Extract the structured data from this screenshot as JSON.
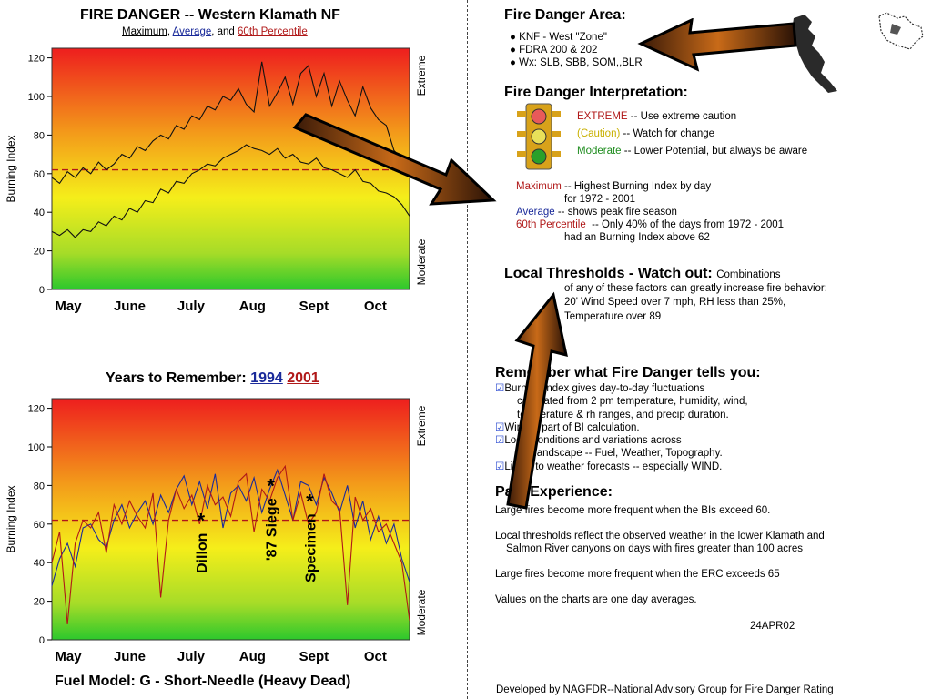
{
  "colors": {
    "red": "#b01818",
    "blue": "#1a2a9a",
    "caution": "#c8b000",
    "moderate": "#1a8a1a"
  },
  "top_chart": {
    "title": "FIRE DANGER -- Western Klamath NF",
    "subtitle": {
      "a": "Maximum",
      "b": ", ",
      "c": "Average",
      ",d": "",
      "e": ", and ",
      "f": "60th Percentile"
    },
    "ylabel": "Burning Index",
    "right_top": "Extreme",
    "right_bottom": "Moderate"
  },
  "bottom_chart": {
    "title_prefix": "Years to Remember:",
    "year_a": "1994",
    "year_b": "2001",
    "ylabel": "Burning Index",
    "right_top": "Extreme",
    "right_bottom": "Moderate",
    "fuel_model": "Fuel Model: G - Short-Needle (Heavy Dead)"
  },
  "chart_data": [
    {
      "type": "line",
      "title": "FIRE DANGER -- Western Klamath NF",
      "ylabel": "Burning Index",
      "ylim": [
        0,
        125
      ],
      "yticks": [
        "0",
        "20",
        "40",
        "60",
        "80",
        "100",
        "120"
      ],
      "xticks": [
        "May",
        "June",
        "July",
        "Aug",
        "Sept",
        "Oct"
      ],
      "reference_line": 62,
      "series": [
        {
          "name": "Maximum",
          "color": "#111",
          "values": [
            58,
            55,
            61,
            58,
            63,
            60,
            66,
            62,
            65,
            70,
            68,
            74,
            72,
            77,
            80,
            78,
            85,
            83,
            90,
            88,
            95,
            93,
            100,
            98,
            104,
            96,
            92,
            118,
            95,
            102,
            110,
            96,
            112,
            116,
            100,
            112,
            95,
            108,
            98,
            90,
            105,
            94,
            88,
            85,
            72,
            68,
            60
          ]
        },
        {
          "name": "Average",
          "color": "#111",
          "values": [
            30,
            28,
            31,
            27,
            31,
            30,
            35,
            33,
            38,
            36,
            42,
            40,
            46,
            45,
            52,
            50,
            56,
            55,
            60,
            62,
            65,
            64,
            68,
            70,
            72,
            75,
            73,
            72,
            70,
            73,
            68,
            70,
            66,
            65,
            68,
            63,
            62,
            60,
            58,
            62,
            56,
            55,
            51,
            50,
            48,
            44,
            38
          ]
        }
      ]
    },
    {
      "type": "line",
      "title": "Years to Remember: 1994 2001",
      "ylabel": "Burning Index",
      "ylim": [
        0,
        125
      ],
      "yticks": [
        "0",
        "20",
        "40",
        "60",
        "80",
        "100",
        "120"
      ],
      "xticks": [
        "May",
        "June",
        "July",
        "Aug",
        "Sept",
        "Oct"
      ],
      "reference_line": 62,
      "series": [
        {
          "name": "1994",
          "color": "#1a2a9a",
          "values": [
            28,
            42,
            50,
            38,
            58,
            60,
            52,
            48,
            62,
            70,
            58,
            66,
            72,
            60,
            75,
            66,
            78,
            85,
            70,
            82,
            68,
            86,
            58,
            76,
            80,
            72,
            84,
            66,
            78,
            88,
            75,
            62,
            82,
            80,
            70,
            84,
            76,
            66,
            80,
            58,
            72,
            52,
            64,
            50,
            60,
            42,
            30
          ]
        },
        {
          "name": "2001",
          "color": "#b01818",
          "values": [
            40,
            56,
            8,
            50,
            62,
            58,
            66,
            45,
            70,
            60,
            72,
            64,
            58,
            76,
            22,
            62,
            78,
            68,
            75,
            60,
            80,
            70,
            74,
            64,
            82,
            86,
            56,
            78,
            72,
            84,
            90,
            62,
            76,
            60,
            66,
            86,
            72,
            68,
            18,
            74,
            62,
            68,
            56,
            60,
            50,
            40,
            10
          ]
        }
      ],
      "annotations": [
        {
          "label": "Dillon",
          "x_index": 18,
          "y": 62
        },
        {
          "label": "'87 Siege",
          "x_index": 27,
          "y": 80
        },
        {
          "label": "Specimen",
          "x_index": 32,
          "y": 72
        }
      ]
    }
  ],
  "area": {
    "title": "Fire Danger Area:",
    "items": [
      "KNF - West \"Zone\"",
      "FDRA  200 & 202",
      "Wx: SLB, SBB, SOM,,BLR"
    ]
  },
  "interp": {
    "title": "Fire Danger Interpretation:",
    "extreme_label": "EXTREME",
    "extreme_text": "-- Use extreme caution",
    "caution_label": "(Caution)",
    "caution_text": "-- Watch for change",
    "moderate_label": "Moderate",
    "moderate_text": "-- Lower Potential, but always be aware",
    "max_label": "Maximum",
    "max_text": "-- Highest Burning Index by day",
    "max_text2": "for 1972 - 2001",
    "avg_label": "Average",
    "avg_text": "-- shows peak fire season",
    "pct_label": "60th Percentile",
    "pct_text": "-- Only 40% of the days from 1972 - 2001",
    "pct_text2": "had an Burning Index above 62"
  },
  "thresholds": {
    "title": "Local Thresholds - Watch out:",
    "lead": "Combinations",
    "l1": "of any of these factors can greatly increase fire behavior:",
    "l2": "20' Wind Speed over 7 mph, RH  less than 25%,",
    "l3": "Temperature over 89"
  },
  "remember": {
    "title": "Remember what Fire Danger tells you:",
    "lines": [
      "Burning Index gives day-to-day fluctuations",
      "calculated from 2 pm temperature, humidity, wind,",
      "temperature & rh ranges, and precip duration.",
      "Wind is part of BI calculation.",
      "Local conditions and variations across",
      "the landscape -- Fuel, Weather, Topography.",
      "Listen to weather forecasts -- especially WIND."
    ]
  },
  "past": {
    "title": "Past Experience:",
    "p1": "Large fires become more frequent when the BIs exceed 60.",
    "p2a": "Local thresholds reflect the observed weather in the lower Klamath and",
    "p2b": "Salmon River canyons on days with fires greater than 100 acres",
    "p3": "Large fires become more frequent when the ERC  exceeds 65",
    "p4": "Values on the charts are one day averages.",
    "date": "24APR02"
  },
  "footer": "Developed by NAGFDR--National Advisory Group for Fire Danger Rating"
}
